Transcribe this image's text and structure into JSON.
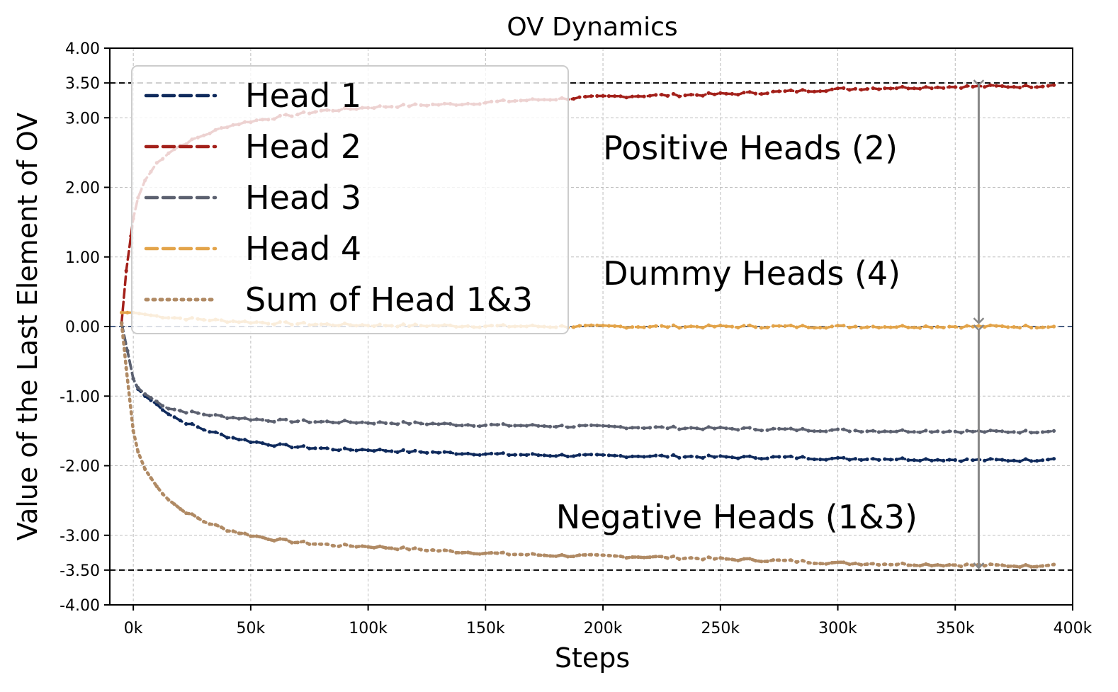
{
  "chart_data": {
    "type": "line",
    "title": "OV Dynamics",
    "xlabel": "Steps",
    "ylabel": "Value of the Last Element of OV",
    "xlim": [
      -10000,
      400000
    ],
    "ylim": [
      -4.0,
      4.0
    ],
    "grid": true,
    "legend_position": "top-left",
    "x_ticks": [
      0,
      50000,
      100000,
      150000,
      200000,
      250000,
      300000,
      350000,
      400000
    ],
    "x_tick_labels": [
      "0k",
      "50k",
      "100k",
      "150k",
      "200k",
      "250k",
      "300k",
      "350k",
      "400k"
    ],
    "y_ticks": [
      -4.0,
      -3.5,
      -3.0,
      -2.0,
      -1.0,
      0.0,
      1.0,
      2.0,
      3.0,
      3.5,
      4.0
    ],
    "y_tick_labels": [
      "-4.00",
      "-3.50",
      "-3.00",
      "-2.00",
      "-1.00",
      "0.00",
      "1.00",
      "2.00",
      "3.00",
      "3.50",
      "4.00"
    ],
    "reference_lines": [
      3.5,
      -3.5
    ],
    "series": [
      {
        "name": "Head 1",
        "color": "#0f2a5c",
        "style": "dashed",
        "x": [
          -5000,
          0,
          2000,
          5000,
          10000,
          15000,
          20000,
          30000,
          40000,
          50000,
          60000,
          70000,
          80000,
          90000,
          100000,
          120000,
          140000,
          160000,
          180000,
          200000,
          220000,
          240000,
          260000,
          280000,
          300000,
          320000,
          340000,
          360000,
          380000,
          392000
        ],
        "values": [
          0.05,
          -0.75,
          -0.9,
          -1.0,
          -1.12,
          -1.25,
          -1.35,
          -1.48,
          -1.58,
          -1.65,
          -1.7,
          -1.73,
          -1.75,
          -1.77,
          -1.77,
          -1.8,
          -1.82,
          -1.84,
          -1.85,
          -1.86,
          -1.86,
          -1.87,
          -1.88,
          -1.88,
          -1.9,
          -1.9,
          -1.91,
          -1.92,
          -1.92,
          -1.9
        ]
      },
      {
        "name": "Head 2",
        "color": "#a3201a",
        "style": "dashed",
        "x": [
          -5000,
          -3000,
          -1000,
          0,
          2000,
          5000,
          10000,
          15000,
          20000,
          30000,
          40000,
          50000,
          60000,
          70000,
          80000,
          90000,
          100000,
          120000,
          140000,
          160000,
          180000,
          200000,
          220000,
          240000,
          260000,
          280000,
          300000,
          320000,
          340000,
          360000,
          380000,
          392000
        ],
        "values": [
          0.05,
          0.8,
          1.3,
          1.55,
          1.85,
          2.1,
          2.35,
          2.5,
          2.6,
          2.75,
          2.88,
          2.95,
          3.0,
          3.05,
          3.1,
          3.12,
          3.15,
          3.18,
          3.2,
          3.24,
          3.27,
          3.3,
          3.32,
          3.33,
          3.35,
          3.38,
          3.41,
          3.43,
          3.44,
          3.45,
          3.45,
          3.47
        ]
      },
      {
        "name": "Head 3",
        "color": "#5c6170",
        "style": "dashed",
        "x": [
          -5000,
          0,
          2000,
          5000,
          10000,
          15000,
          20000,
          30000,
          40000,
          50000,
          60000,
          70000,
          80000,
          90000,
          100000,
          120000,
          140000,
          160000,
          180000,
          200000,
          220000,
          240000,
          260000,
          280000,
          300000,
          320000,
          340000,
          360000,
          380000,
          392000
        ],
        "values": [
          0.05,
          -0.75,
          -0.88,
          -0.97,
          -1.08,
          -1.17,
          -1.21,
          -1.26,
          -1.3,
          -1.33,
          -1.35,
          -1.36,
          -1.37,
          -1.37,
          -1.38,
          -1.39,
          -1.41,
          -1.42,
          -1.43,
          -1.44,
          -1.45,
          -1.46,
          -1.47,
          -1.48,
          -1.49,
          -1.5,
          -1.5,
          -1.51,
          -1.51,
          -1.5
        ]
      },
      {
        "name": "Head 4",
        "color": "#e3a44a",
        "style": "dashed",
        "x": [
          -5000,
          0,
          10000,
          20000,
          40000,
          60000,
          80000,
          100000,
          140000,
          180000,
          220000,
          260000,
          300000,
          340000,
          380000,
          392000
        ],
        "values": [
          0.2,
          0.2,
          0.15,
          0.12,
          0.08,
          0.05,
          0.03,
          0.02,
          0.01,
          0.0,
          0.0,
          0.0,
          0.0,
          0.0,
          0.0,
          0.0
        ]
      },
      {
        "name": "Sum of Head 1&3",
        "color": "#b08a64",
        "style": "dotted",
        "x": [
          -5000,
          -3000,
          0,
          2000,
          5000,
          10000,
          15000,
          20000,
          30000,
          40000,
          50000,
          60000,
          70000,
          80000,
          90000,
          100000,
          120000,
          140000,
          160000,
          180000,
          200000,
          220000,
          240000,
          260000,
          280000,
          300000,
          320000,
          340000,
          360000,
          380000,
          392000
        ],
        "values": [
          0.05,
          -0.6,
          -1.5,
          -1.8,
          -2.05,
          -2.3,
          -2.48,
          -2.62,
          -2.8,
          -2.92,
          -3.0,
          -3.06,
          -3.1,
          -3.13,
          -3.15,
          -3.16,
          -3.2,
          -3.24,
          -3.27,
          -3.29,
          -3.3,
          -3.31,
          -3.33,
          -3.35,
          -3.37,
          -3.4,
          -3.41,
          -3.42,
          -3.43,
          -3.44,
          -3.42
        ]
      }
    ],
    "annotations": [
      {
        "text": "Positive Heads (2)",
        "x": 200000,
        "y": 2.4
      },
      {
        "text": "Dummy Heads (4)",
        "x": 200000,
        "y": 0.6
      },
      {
        "text": "Negative Heads (1&3)",
        "x": 180000,
        "y": -2.9
      }
    ],
    "arrows": [
      {
        "x": 360000,
        "from": 3.47,
        "to": 0.05,
        "color": "#888888"
      },
      {
        "x": 360000,
        "from": -0.05,
        "to": -3.47,
        "color": "#888888"
      }
    ],
    "zero_line_color": "#0f2a5c"
  }
}
